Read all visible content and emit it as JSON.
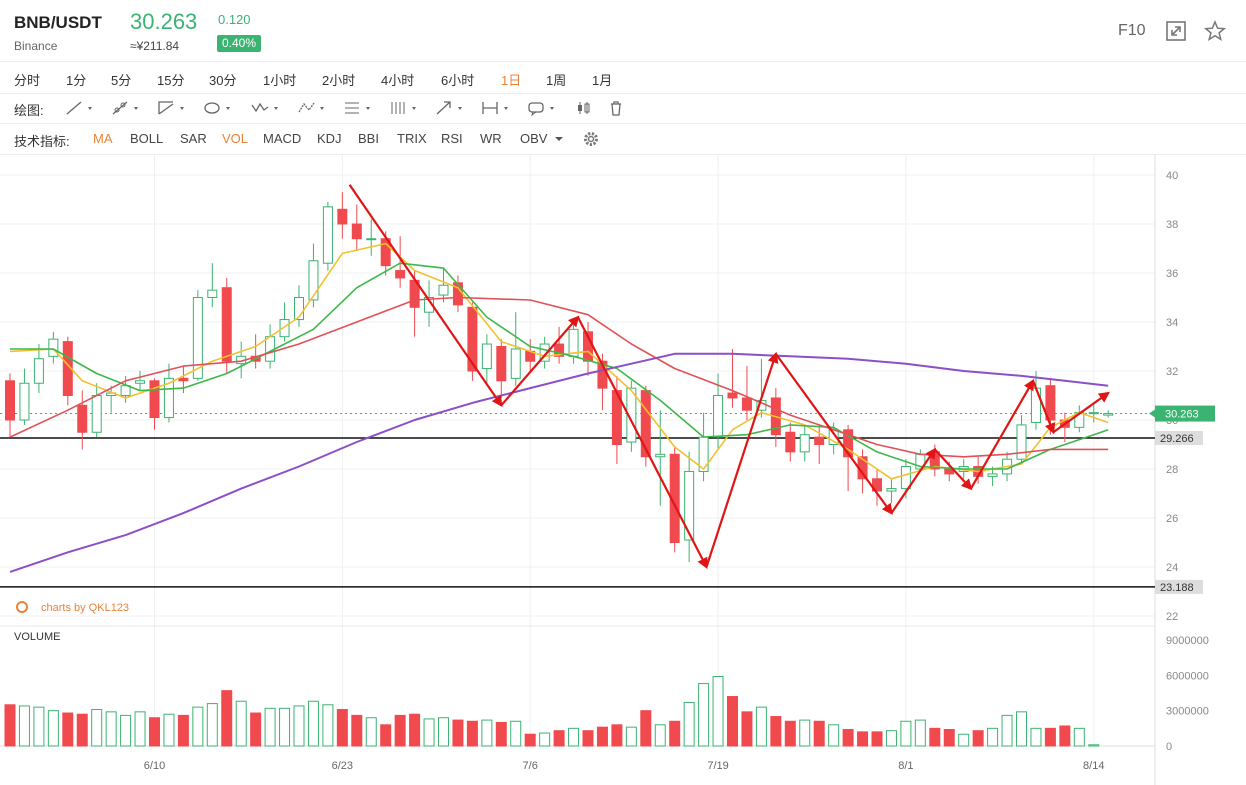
{
  "header": {
    "pair": "BNB/USDT",
    "exchange": "Binance",
    "price": "30.263",
    "cny_price": "≈¥211.84",
    "change": "0.120",
    "change_pct": "0.40%",
    "f10": "F10",
    "price_color": "#3bb371"
  },
  "timeframes": [
    {
      "label": "分时",
      "active": false
    },
    {
      "label": "1分",
      "active": false
    },
    {
      "label": "5分",
      "active": false
    },
    {
      "label": "15分",
      "active": false
    },
    {
      "label": "30分",
      "active": false
    },
    {
      "label": "1小时",
      "active": false
    },
    {
      "label": "2小时",
      "active": false
    },
    {
      "label": "4小时",
      "active": false
    },
    {
      "label": "6小时",
      "active": false
    },
    {
      "label": "1日",
      "active": true
    },
    {
      "label": "1周",
      "active": false
    },
    {
      "label": "1月",
      "active": false
    }
  ],
  "drawing": {
    "label": "绘图:",
    "tools": [
      "line-tool-icon",
      "ray-tool-icon",
      "channel-tool-icon",
      "ellipse-tool-icon",
      "wave-tool-icon",
      "pattern-tool-icon",
      "fib-tool-icon",
      "vertical-lines-icon",
      "arrow-tool-icon",
      "range-tool-icon",
      "annotation-tool-icon",
      "candle-type-icon",
      "trash-icon"
    ]
  },
  "indicators": {
    "label": "技术指标:",
    "items": [
      {
        "label": "MA",
        "active": true
      },
      {
        "label": "BOLL",
        "active": false
      },
      {
        "label": "SAR",
        "active": false
      },
      {
        "label": "VOL",
        "active": true
      },
      {
        "label": "MACD",
        "active": false
      },
      {
        "label": "KDJ",
        "active": false
      },
      {
        "label": "BBI",
        "active": false
      },
      {
        "label": "TRIX",
        "active": false
      },
      {
        "label": "RSI",
        "active": false
      },
      {
        "label": "WR",
        "active": false
      },
      {
        "label": "OBV",
        "active": false
      }
    ]
  },
  "chart_data": {
    "type": "candlestick",
    "y_ticks": [
      "40",
      "38",
      "36",
      "34",
      "32",
      "30",
      "28",
      "26",
      "24",
      "22"
    ],
    "ylim": [
      22,
      40.5
    ],
    "x_labels": [
      {
        "label": "6/10",
        "index": 10
      },
      {
        "label": "6/23",
        "index": 23
      },
      {
        "label": "7/6",
        "index": 36
      },
      {
        "label": "7/19",
        "index": 49
      },
      {
        "label": "8/1",
        "index": 62
      },
      {
        "label": "8/14",
        "index": 75
      }
    ],
    "watermark": "charts by QKL123",
    "volume_title": "VOLUME",
    "volume_ticks": [
      "9000000",
      "6000000",
      "3000000",
      "0"
    ],
    "volume_max": 9000000,
    "current_price_label": "30.263",
    "current_price": 30.263,
    "levels": [
      {
        "value": 29.266,
        "label": "29.266"
      },
      {
        "value": 23.188,
        "label": "23.188"
      }
    ],
    "colors": {
      "up": "#3bb371",
      "down": "#f04a4f",
      "ma_yellow": "#f2c12e",
      "ma_green": "#3cb94a",
      "ma_red": "#e05258",
      "ma_purple": "#8b4fc8",
      "arrow": "#e01515"
    },
    "candles": [
      [
        31.6,
        30.0,
        31.9,
        29.3
      ],
      [
        30.0,
        31.5,
        32.1,
        29.8
      ],
      [
        31.5,
        32.5,
        33.1,
        31.1
      ],
      [
        32.6,
        33.3,
        33.6,
        32.3
      ],
      [
        33.2,
        31.0,
        33.4,
        30.6
      ],
      [
        30.6,
        29.5,
        31.2,
        28.8
      ],
      [
        29.5,
        31.0,
        31.5,
        29.3
      ],
      [
        31.0,
        31.1,
        31.4,
        30.3
      ],
      [
        31.0,
        31.4,
        31.8,
        30.7
      ],
      [
        31.5,
        31.6,
        32.0,
        31.2
      ],
      [
        31.6,
        30.1,
        31.7,
        29.6
      ],
      [
        30.1,
        31.7,
        32.3,
        29.9
      ],
      [
        31.7,
        31.6,
        32.2,
        31.1
      ],
      [
        31.7,
        35.0,
        35.3,
        31.6
      ],
      [
        35.0,
        35.3,
        36.4,
        34.6
      ],
      [
        35.4,
        32.4,
        35.8,
        31.9
      ],
      [
        32.3,
        32.6,
        33.2,
        31.7
      ],
      [
        32.6,
        32.4,
        33.5,
        32.1
      ],
      [
        32.4,
        33.4,
        33.9,
        32.1
      ],
      [
        33.4,
        34.1,
        34.8,
        33.2
      ],
      [
        34.1,
        35.0,
        35.5,
        33.8
      ],
      [
        34.9,
        36.5,
        37.2,
        34.6
      ],
      [
        36.4,
        38.7,
        38.9,
        36.1
      ],
      [
        38.6,
        38.0,
        39.3,
        37.4
      ],
      [
        38.0,
        37.4,
        38.8,
        36.9
      ],
      [
        37.4,
        37.4,
        38.2,
        36.7
      ],
      [
        37.4,
        36.3,
        37.7,
        35.9
      ],
      [
        36.1,
        35.8,
        37.5,
        35.4
      ],
      [
        35.7,
        34.6,
        36.1,
        33.4
      ],
      [
        34.4,
        35.0,
        35.7,
        33.8
      ],
      [
        35.1,
        35.5,
        36.2,
        34.8
      ],
      [
        35.6,
        34.7,
        35.9,
        34.4
      ],
      [
        34.6,
        32.0,
        34.8,
        31.6
      ],
      [
        32.1,
        33.1,
        33.5,
        31.4
      ],
      [
        33.0,
        31.6,
        33.3,
        30.9
      ],
      [
        31.7,
        32.9,
        34.4,
        31.4
      ],
      [
        32.8,
        32.4,
        33.3,
        32.0
      ],
      [
        32.4,
        33.1,
        33.4,
        32.1
      ],
      [
        33.1,
        32.6,
        33.8,
        32.3
      ],
      [
        32.6,
        33.7,
        34.0,
        32.3
      ],
      [
        33.6,
        32.4,
        34.0,
        31.8
      ],
      [
        32.4,
        31.3,
        32.7,
        30.4
      ],
      [
        31.2,
        29.0,
        31.8,
        28.2
      ],
      [
        29.1,
        31.3,
        31.6,
        28.7
      ],
      [
        31.2,
        28.5,
        31.4,
        28.1
      ],
      [
        28.5,
        28.6,
        30.4,
        26.5
      ],
      [
        28.6,
        25.0,
        28.9,
        24.6
      ],
      [
        25.1,
        27.9,
        28.7,
        24.2
      ],
      [
        27.9,
        29.3,
        30.3,
        27.5
      ],
      [
        29.3,
        31.0,
        31.9,
        28.8
      ],
      [
        31.1,
        30.9,
        32.9,
        30.5
      ],
      [
        30.9,
        30.4,
        32.2,
        30.0
      ],
      [
        30.4,
        30.8,
        32.5,
        30.1
      ],
      [
        30.9,
        29.4,
        31.3,
        28.9
      ],
      [
        29.5,
        28.7,
        29.9,
        28.3
      ],
      [
        28.7,
        29.4,
        29.8,
        28.3
      ],
      [
        29.3,
        29.0,
        29.7,
        28.2
      ],
      [
        29.0,
        29.6,
        29.9,
        28.6
      ],
      [
        29.6,
        28.5,
        29.8,
        27.1
      ],
      [
        28.5,
        27.6,
        28.8,
        27.0
      ],
      [
        27.6,
        27.1,
        28.0,
        26.5
      ],
      [
        27.1,
        27.2,
        27.6,
        26.6
      ],
      [
        27.2,
        28.1,
        28.4,
        26.8
      ],
      [
        28.0,
        28.6,
        28.8,
        27.9
      ],
      [
        28.7,
        28.0,
        29.0,
        27.7
      ],
      [
        28.0,
        27.8,
        28.3,
        27.5
      ],
      [
        27.9,
        28.1,
        28.4,
        27.6
      ],
      [
        28.1,
        27.7,
        28.5,
        27.4
      ],
      [
        27.7,
        27.8,
        28.1,
        27.3
      ],
      [
        27.8,
        28.4,
        28.7,
        27.5
      ],
      [
        28.4,
        29.8,
        30.2,
        28.2
      ],
      [
        29.9,
        31.3,
        32.0,
        29.6
      ],
      [
        31.4,
        30.0,
        31.7,
        29.4
      ],
      [
        30.0,
        29.7,
        30.3,
        29.1
      ],
      [
        29.7,
        30.3,
        30.6,
        29.5
      ],
      [
        30.3,
        30.3,
        30.7,
        29.9
      ],
      [
        30.2,
        30.263,
        30.4,
        30.1
      ]
    ],
    "volumes": [
      3500000,
      3400000,
      3300000,
      3000000,
      2800000,
      2700000,
      3100000,
      2900000,
      2600000,
      2900000,
      2400000,
      2700000,
      2600000,
      3300000,
      3600000,
      4700000,
      3800000,
      2800000,
      3200000,
      3200000,
      3400000,
      3800000,
      3500000,
      3100000,
      2600000,
      2400000,
      1800000,
      2600000,
      2700000,
      2300000,
      2400000,
      2200000,
      2100000,
      2200000,
      2000000,
      2100000,
      1000000,
      1100000,
      1300000,
      1500000,
      1300000,
      1600000,
      1800000,
      1600000,
      3000000,
      1800000,
      2100000,
      3700000,
      5300000,
      5900000,
      4200000,
      2900000,
      3300000,
      2500000,
      2100000,
      2200000,
      2100000,
      1800000,
      1400000,
      1200000,
      1200000,
      1300000,
      2100000,
      2200000,
      1500000,
      1400000,
      1000000,
      1300000,
      1500000,
      2600000,
      2900000,
      1500000,
      1500000,
      1700000,
      1500000,
      100000
    ],
    "ma_series": [
      {
        "color": "#f2c12e",
        "points": [
          [
            0,
            32.8
          ],
          [
            3,
            32.9
          ],
          [
            5,
            31.6
          ],
          [
            8,
            30.9
          ],
          [
            11,
            31.5
          ],
          [
            14,
            32.4
          ],
          [
            17,
            33.0
          ],
          [
            20,
            34.2
          ],
          [
            23,
            36.8
          ],
          [
            26,
            37.2
          ],
          [
            28,
            36.1
          ],
          [
            31,
            35.4
          ],
          [
            34,
            33.2
          ],
          [
            37,
            32.6
          ],
          [
            40,
            32.8
          ],
          [
            43,
            31.2
          ],
          [
            46,
            28.9
          ],
          [
            48,
            28.0
          ],
          [
            50,
            29.6
          ],
          [
            52,
            30.3
          ],
          [
            55,
            29.8
          ],
          [
            58,
            28.8
          ],
          [
            61,
            27.6
          ],
          [
            64,
            28.1
          ],
          [
            67,
            27.9
          ],
          [
            70,
            28.2
          ],
          [
            72,
            29.7
          ],
          [
            74,
            30.3
          ],
          [
            76,
            29.9
          ]
        ]
      },
      {
        "color": "#3cb94a",
        "points": [
          [
            0,
            32.9
          ],
          [
            3,
            32.9
          ],
          [
            6,
            31.9
          ],
          [
            9,
            31.2
          ],
          [
            12,
            31.3
          ],
          [
            15,
            31.9
          ],
          [
            18,
            32.8
          ],
          [
            21,
            33.7
          ],
          [
            24,
            35.4
          ],
          [
            27,
            36.4
          ],
          [
            30,
            36.2
          ],
          [
            33,
            34.2
          ],
          [
            36,
            33.0
          ],
          [
            39,
            32.6
          ],
          [
            42,
            32.1
          ],
          [
            45,
            30.8
          ],
          [
            48,
            29.3
          ],
          [
            51,
            29.4
          ],
          [
            54,
            29.8
          ],
          [
            57,
            29.7
          ],
          [
            60,
            28.7
          ],
          [
            63,
            28.1
          ],
          [
            66,
            28.0
          ],
          [
            69,
            28.0
          ],
          [
            72,
            28.8
          ],
          [
            75,
            29.4
          ],
          [
            76,
            29.6
          ]
        ]
      },
      {
        "color": "#e05258",
        "points": [
          [
            0,
            29.3
          ],
          [
            4,
            30.4
          ],
          [
            8,
            31.6
          ],
          [
            12,
            32.2
          ],
          [
            16,
            32.4
          ],
          [
            20,
            33.1
          ],
          [
            24,
            34.0
          ],
          [
            28,
            34.9
          ],
          [
            31,
            35.0
          ],
          [
            36,
            34.9
          ],
          [
            40,
            34.3
          ],
          [
            43,
            33.1
          ],
          [
            46,
            32.1
          ],
          [
            50,
            31.2
          ],
          [
            54,
            30.2
          ],
          [
            57,
            29.6
          ],
          [
            60,
            29.0
          ],
          [
            63,
            28.6
          ],
          [
            66,
            28.5
          ],
          [
            69,
            28.6
          ],
          [
            72,
            28.8
          ],
          [
            76,
            28.8
          ]
        ]
      },
      {
        "color": "#8b4fc8",
        "points": [
          [
            0,
            23.8
          ],
          [
            4,
            24.6
          ],
          [
            8,
            25.3
          ],
          [
            12,
            26.2
          ],
          [
            16,
            27.2
          ],
          [
            20,
            28.1
          ],
          [
            24,
            29.1
          ],
          [
            28,
            30.0
          ],
          [
            32,
            30.7
          ],
          [
            36,
            31.3
          ],
          [
            40,
            31.9
          ],
          [
            43,
            32.3
          ],
          [
            46,
            32.7
          ],
          [
            50,
            32.7
          ],
          [
            54,
            32.6
          ],
          [
            58,
            32.5
          ],
          [
            62,
            32.3
          ],
          [
            66,
            32.0
          ],
          [
            70,
            31.8
          ],
          [
            73,
            31.6
          ],
          [
            76,
            31.4
          ]
        ]
      }
    ],
    "annotation_arrows": [
      [
        [
          23.5,
          39.6
        ],
        [
          34.0,
          30.6
        ]
      ],
      [
        [
          34.0,
          30.6
        ],
        [
          39.3,
          34.2
        ]
      ],
      [
        [
          39.3,
          34.2
        ],
        [
          48.2,
          24.0
        ]
      ],
      [
        [
          48.2,
          24.0
        ],
        [
          53.0,
          32.7
        ]
      ],
      [
        [
          53.0,
          32.7
        ],
        [
          61.0,
          26.2
        ]
      ],
      [
        [
          61.0,
          26.2
        ],
        [
          64.0,
          28.8
        ]
      ],
      [
        [
          64.0,
          28.8
        ],
        [
          66.5,
          27.2
        ]
      ],
      [
        [
          66.5,
          27.2
        ],
        [
          70.8,
          31.6
        ]
      ],
      [
        [
          70.8,
          31.6
        ],
        [
          72.2,
          29.5
        ]
      ],
      [
        [
          72.2,
          29.5
        ],
        [
          76.0,
          31.1
        ]
      ]
    ]
  }
}
